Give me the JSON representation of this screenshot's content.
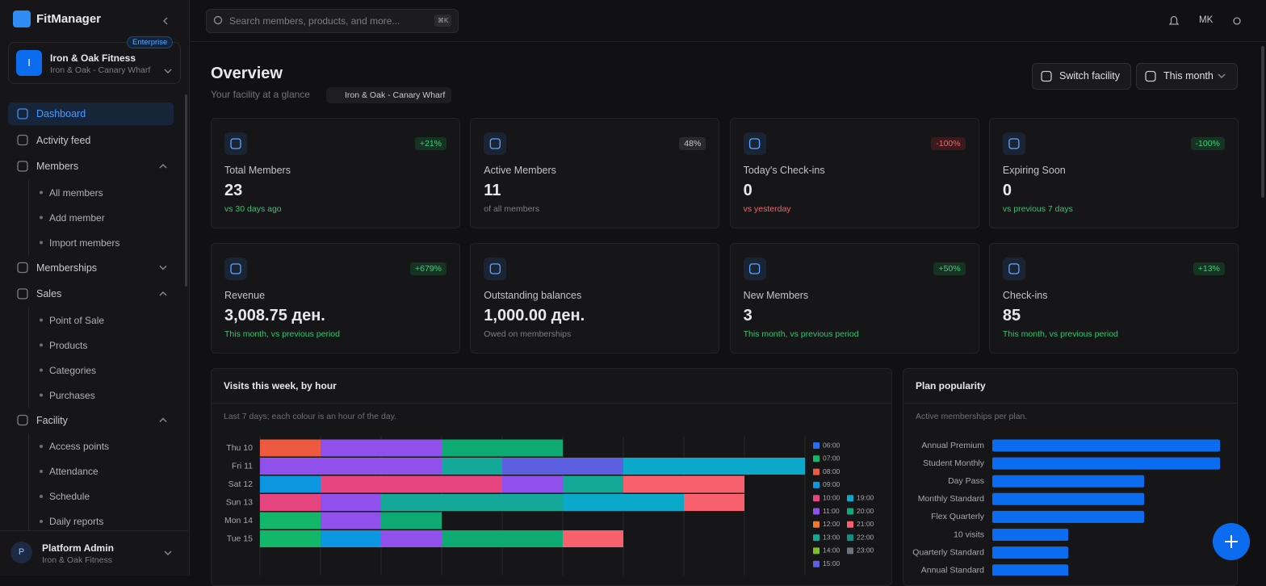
{
  "sidebar": {
    "brand": "FitManager",
    "org": {
      "badge": "Enterprise",
      "initial": "I",
      "name": "Iron & Oak Fitness",
      "location": "Iron & Oak - Canary Wharf"
    },
    "nav": [
      {
        "label": "Dashboard",
        "active": true
      },
      {
        "label": "Activity feed"
      },
      {
        "label": "Members",
        "expanded": true,
        "children": [
          "All members",
          "Add member",
          "Import members"
        ]
      },
      {
        "label": "Memberships",
        "expanded": false
      },
      {
        "label": "Sales",
        "expanded": true,
        "children": [
          "Point of Sale",
          "Products",
          "Categories",
          "Purchases"
        ]
      },
      {
        "label": "Facility",
        "expanded": true,
        "children": [
          "Access points",
          "Attendance",
          "Schedule",
          "Daily reports"
        ]
      }
    ],
    "user": {
      "initial": "P",
      "name": "Platform Admin",
      "org": "Iron & Oak Fitness"
    }
  },
  "topbar": {
    "search_placeholder": "Search members, products, and more...",
    "shortcut": "⌘K",
    "initials": "MK"
  },
  "header": {
    "title": "Overview",
    "subtitle": "Your facility at a glance",
    "location": "Iron & Oak - Canary Wharf",
    "buttons": [
      "Switch facility",
      "This month"
    ]
  },
  "stats": [
    {
      "label": "Total Members",
      "value": "23",
      "badge": "+21%",
      "tone": "positive",
      "note": "vs 30 days ago"
    },
    {
      "label": "Active Members",
      "value": "11",
      "badge": "48%",
      "tone": "neutral",
      "note": "of all members"
    },
    {
      "label": "Today's Check-ins",
      "value": "0",
      "badge": "-100%",
      "tone": "negative",
      "note": "vs yesterday"
    },
    {
      "label": "Expiring Soon",
      "value": "0",
      "badge": "-100%",
      "tone": "positive",
      "note": "vs previous 7 days"
    },
    {
      "label": "Revenue",
      "value": "3,008.75 ден.",
      "badge": "+679%",
      "tone": "positive",
      "note": "This month, vs previous period"
    },
    {
      "label": "Outstanding balances",
      "value": "1,000.00 ден.",
      "tone": "neutral",
      "note": "Owed on memberships"
    },
    {
      "label": "New Members",
      "value": "3",
      "badge": "+50%",
      "tone": "positive",
      "note": "This month, vs previous period"
    },
    {
      "label": "Check-ins",
      "value": "85",
      "badge": "+13%",
      "tone": "positive",
      "note": "This month, vs previous period"
    }
  ],
  "chart_data": [
    {
      "type": "bar",
      "orientation": "horizontal",
      "stacked": true,
      "title": "Visits this week, by hour",
      "subtitle": "Last 7 days; each colour is an hour of the day.",
      "categories": [
        "Thu 10",
        "Fri 11",
        "Sat 12",
        "Sun 13",
        "Mon 14",
        "Tue 15"
      ],
      "series": [
        {
          "name": "06:00",
          "color": "#2670ee",
          "values": [
            null,
            null,
            null,
            null,
            null,
            null
          ]
        },
        {
          "name": "07:00",
          "color": "#12b76a",
          "values": [
            null,
            null,
            null,
            null,
            1,
            1
          ]
        },
        {
          "name": "08:00",
          "color": "#ee5a3f",
          "values": [
            1,
            null,
            null,
            null,
            null,
            null
          ]
        },
        {
          "name": "09:00",
          "color": "#0c96e0",
          "values": [
            null,
            null,
            1,
            null,
            null,
            1
          ]
        },
        {
          "name": "10:00",
          "color": "#e6457f",
          "values": [
            null,
            null,
            3,
            1,
            null,
            null
          ]
        },
        {
          "name": "11:00",
          "color": "#9050ec",
          "values": [
            2,
            3,
            1,
            1,
            1,
            1
          ]
        },
        {
          "name": "12:00",
          "color": "#f07a2a",
          "values": [
            null,
            null,
            null,
            null,
            null,
            null
          ]
        },
        {
          "name": "13:00",
          "color": "#14a898",
          "values": [
            null,
            1,
            1,
            3,
            null,
            null
          ]
        },
        {
          "name": "14:00",
          "color": "#7cc121",
          "values": [
            null,
            null,
            null,
            null,
            null,
            null
          ]
        },
        {
          "name": "15:00",
          "color": "#5b5fe0",
          "values": [
            null,
            2,
            null,
            null,
            null,
            null
          ]
        },
        {
          "name": "19:00",
          "color": "#0aa9c9",
          "values": [
            null,
            3,
            null,
            2,
            null,
            null
          ]
        },
        {
          "name": "20:00",
          "color": "#0daa73",
          "values": [
            2,
            null,
            null,
            null,
            1,
            2
          ]
        },
        {
          "name": "21:00",
          "color": "#f8606e",
          "values": [
            null,
            null,
            2,
            1,
            null,
            1
          ]
        },
        {
          "name": "22:00",
          "color": "#0f8f86",
          "values": [
            null,
            null,
            null,
            null,
            null,
            null
          ]
        },
        {
          "name": "23:00",
          "color": "#6b7280",
          "values": [
            null,
            null,
            null,
            null,
            null,
            null
          ]
        }
      ],
      "xlim": [
        0,
        9
      ],
      "xticks": [
        0,
        1,
        2,
        3,
        4,
        5,
        6,
        7,
        8,
        9
      ],
      "grid": true
    },
    {
      "type": "bar",
      "orientation": "horizontal",
      "title": "Plan popularity",
      "subtitle": "Active memberships per plan.",
      "categories": [
        "Annual Premium",
        "Student Monthly",
        "Day Pass",
        "Monthly Standard",
        "Flex Quarterly",
        "10 visits",
        "Quarterly Standard",
        "Annual Standard"
      ],
      "values": [
        3,
        3,
        2,
        2,
        2,
        1,
        1,
        1
      ],
      "color": "#0b6cf0",
      "xlim": [
        0,
        3
      ]
    }
  ]
}
